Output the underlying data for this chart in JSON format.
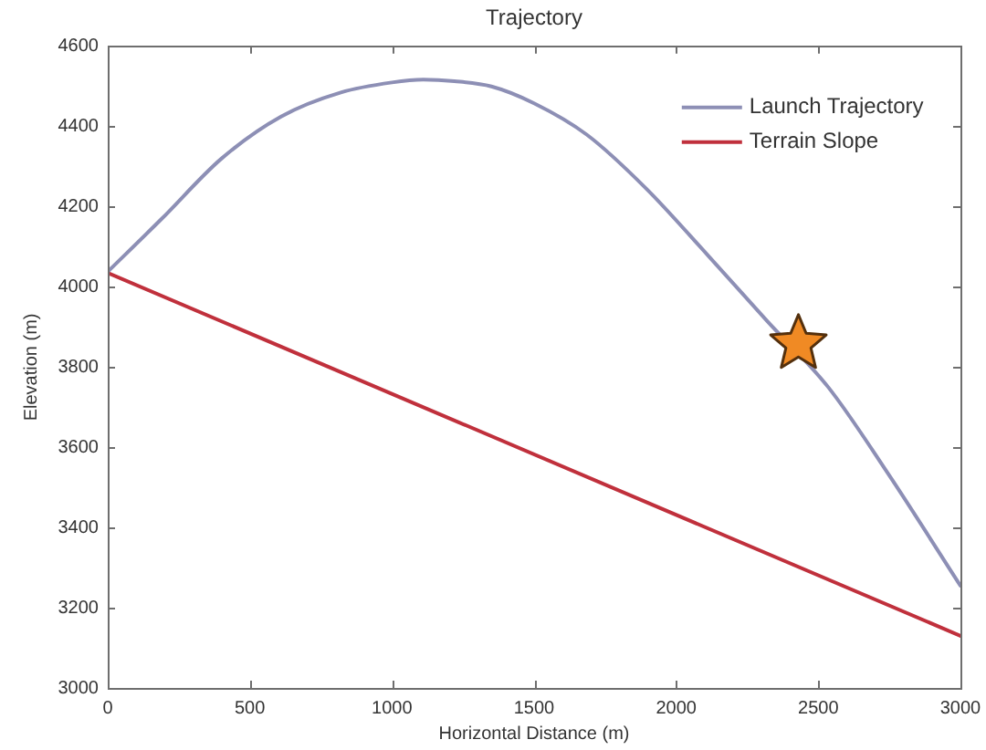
{
  "chart_data": {
    "type": "line",
    "title": "Trajectory",
    "xlabel": "Horizontal Distance (m)",
    "ylabel": "Elevation (m)",
    "xlim": [
      0,
      3000
    ],
    "xticks": [
      0,
      500,
      1000,
      1500,
      2000,
      2500,
      3000
    ],
    "ylim": [
      3000,
      4600
    ],
    "yticks": [
      3000,
      3200,
      3400,
      3600,
      3800,
      4000,
      4200,
      4400,
      4600
    ],
    "legend": "top right",
    "line_style": "solid",
    "marker": "none",
    "series": [
      {
        "name": "Launch Trajectory",
        "color": "#8d8fb5",
        "x": [
          0,
          190,
          400,
          610,
          820,
          1000,
          1110,
          1220,
          1350,
          1500,
          1685,
          1895,
          2110,
          2320,
          2535,
          2745,
          3000
        ],
        "values": [
          4038,
          4170,
          4320,
          4425,
          4485,
          4510,
          4517,
          4513,
          4500,
          4458,
          4380,
          4245,
          4080,
          3915,
          3750,
          3535,
          3255
        ]
      },
      {
        "name": "Terrain Slope",
        "color": "#c0303c",
        "x": [
          0,
          3000
        ],
        "values": [
          4035,
          3130
        ]
      },
      {
        "type": "scatter",
        "color": "#f08a24",
        "marker": "star",
        "x": [
          2430
        ],
        "values": [
          3858
        ]
      }
    ]
  }
}
